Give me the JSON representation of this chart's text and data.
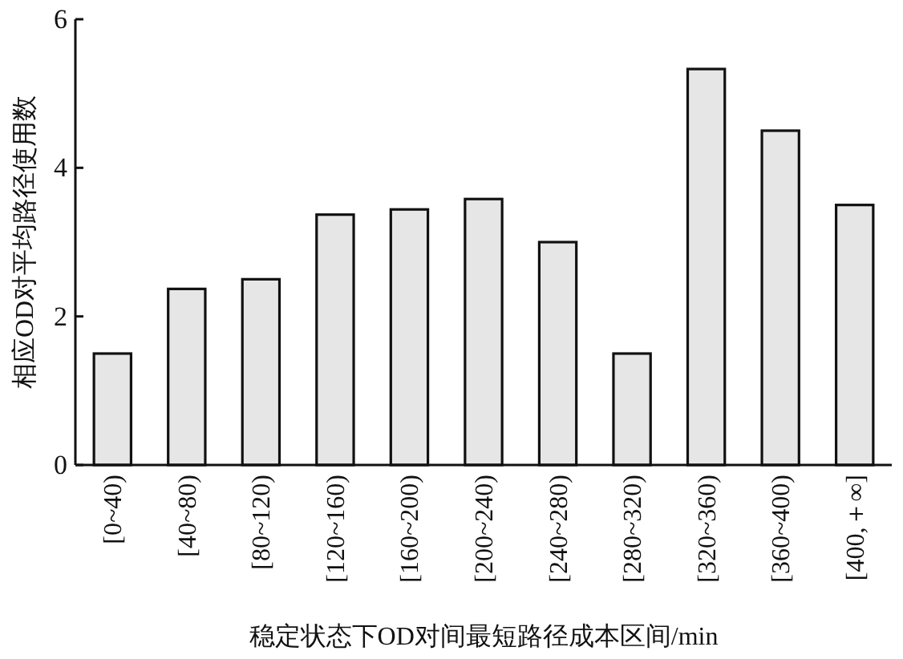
{
  "chart_data": {
    "type": "bar",
    "xlabel": "稳定状态下OD对间最短路径成本区间/min",
    "ylabel": "相应OD对平均路径使用数",
    "categories": [
      "[0~40)",
      "[40~80)",
      "[80~120)",
      "[120~160)",
      "[160~200)",
      "[200~240)",
      "[240~280)",
      "[280~320)",
      "[320~360)",
      "[360~400)",
      "[400,＋∞]"
    ],
    "values": [
      1.5,
      2.37,
      2.5,
      3.37,
      3.44,
      3.58,
      3.0,
      1.5,
      5.33,
      4.5,
      3.5
    ],
    "color": "#e6e6e6",
    "ylim": [
      0,
      6
    ],
    "yticks": [
      0,
      2,
      4,
      6
    ],
    "grid": false
  }
}
